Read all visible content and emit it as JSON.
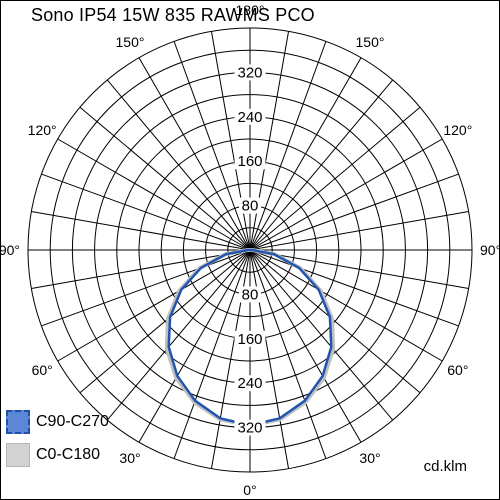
{
  "title": "Sono IP54 15W 835 RAWMS PCO",
  "unit_label": "cd.klm",
  "chart_data": {
    "type": "polar",
    "radial_ticks": [
      80,
      160,
      240,
      320
    ],
    "radial_max": 400,
    "angle_step_deg": 10,
    "angle_labels": [
      {
        "deg": 0,
        "label": "0°"
      },
      {
        "deg": 30,
        "label": "30°"
      },
      {
        "deg": -30,
        "label": "30°"
      },
      {
        "deg": 60,
        "label": "60°"
      },
      {
        "deg": -60,
        "label": "60°"
      },
      {
        "deg": 90,
        "label": "90°"
      },
      {
        "deg": -90,
        "label": "90°"
      },
      {
        "deg": 120,
        "label": "120°"
      },
      {
        "deg": -120,
        "label": "120°"
      },
      {
        "deg": 150,
        "label": "150°"
      },
      {
        "deg": -150,
        "label": "150°"
      },
      {
        "deg": 180,
        "label": "180°"
      }
    ],
    "series": [
      {
        "name": "C0-C180",
        "color": "#c0c0c0",
        "angles": [
          0,
          10,
          20,
          30,
          40,
          50,
          60,
          70,
          80,
          90
        ],
        "values": [
          316,
          310,
          292,
          266,
          233,
          193,
          147,
          97,
          46,
          4
        ]
      },
      {
        "name": "C90-C270",
        "color": "#2255b0",
        "angles": [
          0,
          10,
          20,
          30,
          40,
          50,
          60,
          70,
          80,
          90
        ],
        "values": [
          316,
          308,
          289,
          262,
          228,
          188,
          143,
          94,
          44,
          4
        ]
      }
    ]
  },
  "legend": [
    {
      "label": "C90-C270",
      "fill": "#5b87d6",
      "border": "#1f4fa8"
    },
    {
      "label": "C0-C180",
      "fill": "#d3d3d3",
      "border": "#b5b5b5"
    }
  ]
}
